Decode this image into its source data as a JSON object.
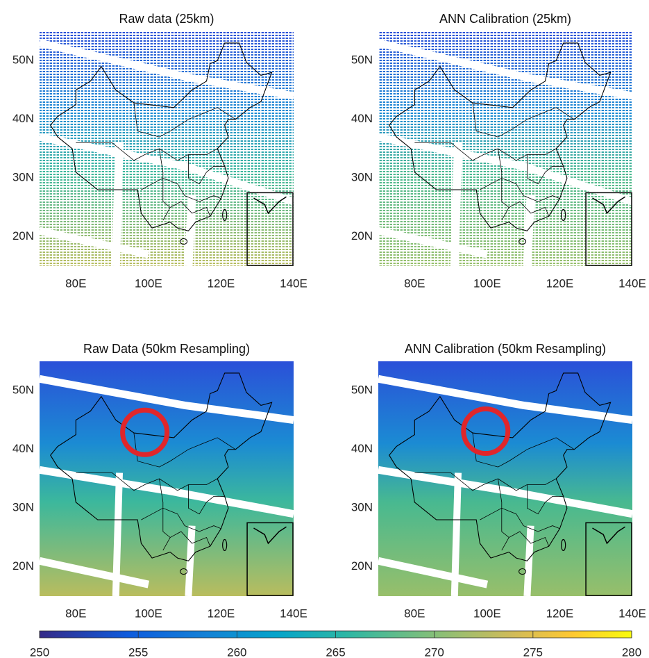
{
  "panels": [
    {
      "title": "Raw data (25km)",
      "xlim": [
        70,
        140
      ],
      "ylim": [
        15,
        55
      ],
      "xticks": [
        {
          "value": 80,
          "label": "80E"
        },
        {
          "value": 100,
          "label": "100E"
        },
        {
          "value": 120,
          "label": "120E"
        },
        {
          "value": 140,
          "label": "140E"
        }
      ],
      "yticks": [
        {
          "value": 20,
          "label": "20N"
        },
        {
          "value": 30,
          "label": "30N"
        },
        {
          "value": 40,
          "label": "40N"
        },
        {
          "value": 50,
          "label": "50N"
        }
      ]
    },
    {
      "title": "ANN Calibration (25km)",
      "xlim": [
        70,
        140
      ],
      "ylim": [
        15,
        55
      ],
      "xticks": [
        {
          "value": 80,
          "label": "80E"
        },
        {
          "value": 100,
          "label": "100E"
        },
        {
          "value": 120,
          "label": "120E"
        },
        {
          "value": 140,
          "label": "140E"
        }
      ],
      "yticks": [
        {
          "value": 20,
          "label": "20N"
        },
        {
          "value": 30,
          "label": "30N"
        },
        {
          "value": 40,
          "label": "40N"
        },
        {
          "value": 50,
          "label": "50N"
        }
      ]
    },
    {
      "title": "Raw Data (50km Resampling)",
      "xlim": [
        70,
        140
      ],
      "ylim": [
        15,
        55
      ],
      "xticks": [
        {
          "value": 80,
          "label": "80E"
        },
        {
          "value": 100,
          "label": "100E"
        },
        {
          "value": 120,
          "label": "120E"
        },
        {
          "value": 140,
          "label": "140E"
        }
      ],
      "yticks": [
        {
          "value": 20,
          "label": "20N"
        },
        {
          "value": 30,
          "label": "30N"
        },
        {
          "value": 40,
          "label": "40N"
        },
        {
          "value": 50,
          "label": "50N"
        }
      ]
    },
    {
      "title": "ANN Calibration (50km Resampling)",
      "xlim": [
        70,
        140
      ],
      "ylim": [
        15,
        55
      ],
      "xticks": [
        {
          "value": 80,
          "label": "80E"
        },
        {
          "value": 100,
          "label": "100E"
        },
        {
          "value": 120,
          "label": "120E"
        },
        {
          "value": 140,
          "label": "140E"
        }
      ],
      "yticks": [
        {
          "value": 20,
          "label": "20N"
        },
        {
          "value": 30,
          "label": "30N"
        },
        {
          "value": 40,
          "label": "40N"
        },
        {
          "value": 50,
          "label": "50N"
        }
      ]
    }
  ],
  "colorbar": {
    "lim": [
      250,
      280
    ],
    "ticks": [
      250,
      255,
      260,
      265,
      270,
      275,
      280
    ]
  }
}
